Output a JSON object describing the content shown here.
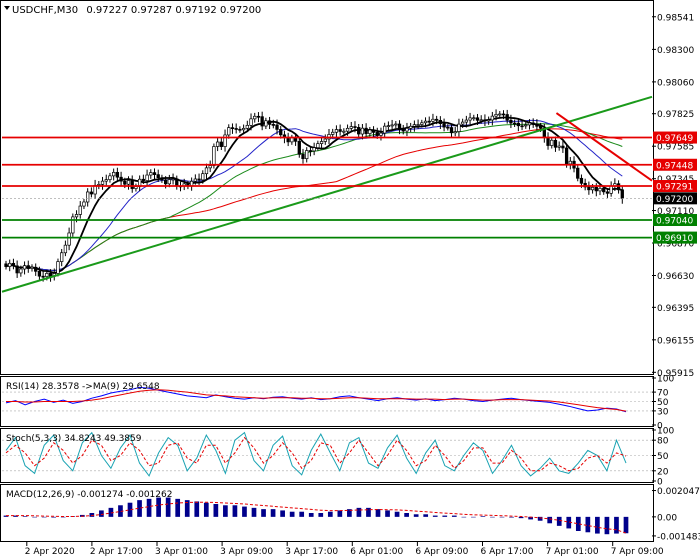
{
  "header": {
    "symbol": "USDCHF,M30",
    "ohlc": "0.97227 0.97287 0.97192 0.97200"
  },
  "chart_data": [
    {
      "type": "candlestick",
      "name": "price",
      "ylim": [
        0.9591,
        0.9865
      ],
      "y_ticks": [
        {
          "label": "0.98541",
          "v": 0.98541
        },
        {
          "label": "0.98300",
          "v": 0.983
        },
        {
          "label": "0.98060",
          "v": 0.9806
        },
        {
          "label": "0.97825",
          "v": 0.97825
        },
        {
          "label": "0.97585",
          "v": 0.97585
        },
        {
          "label": "0.97345",
          "v": 0.97345
        },
        {
          "label": "0.97110",
          "v": 0.9711
        },
        {
          "label": "0.96870",
          "v": 0.9687
        },
        {
          "label": "0.96630",
          "v": 0.9663
        },
        {
          "label": "0.96395",
          "v": 0.96395
        },
        {
          "label": "0.96155",
          "v": 0.96155
        },
        {
          "label": "0.95915",
          "v": 0.95915
        }
      ],
      "levels": [
        {
          "label": "0.97649",
          "value": 0.97649,
          "color": "#e60000"
        },
        {
          "label": "0.97448",
          "value": 0.97448,
          "color": "#e60000"
        },
        {
          "label": "0.97291",
          "value": 0.97291,
          "color": "#e60000"
        },
        {
          "label": "0.97040",
          "value": 0.9704,
          "color": "#008000"
        },
        {
          "label": "0.96910",
          "value": 0.9691,
          "color": "#008000"
        }
      ],
      "current_price": {
        "label": "0.97200",
        "value": 0.972
      },
      "trendlines": [
        {
          "color": "#1a9a1a",
          "from": [
            0,
            0.9651
          ],
          "to": [
            1.05,
            0.9795
          ]
        },
        {
          "color": "#e60000",
          "from": [
            0.853,
            0.9783
          ],
          "to": [
            1.05,
            0.9733
          ]
        }
      ],
      "series": [
        {
          "type": "candles",
          "color": "#000000",
          "close": [
            0.96696,
            0.9672,
            0.96701,
            0.96649,
            0.96678,
            0.96703,
            0.96681,
            0.96691,
            0.96661,
            0.96625,
            0.96622,
            0.96646,
            0.96624,
            0.96645,
            0.96733,
            0.96798,
            0.96854,
            0.96944,
            0.97063,
            0.97081,
            0.97143,
            0.97173,
            0.97247,
            0.97232,
            0.97296,
            0.97303,
            0.97327,
            0.97338,
            0.97366,
            0.97392,
            0.97356,
            0.97327,
            0.97304,
            0.97332,
            0.97272,
            0.97287,
            0.97341,
            0.97331,
            0.97372,
            0.9739,
            0.97375,
            0.97352,
            0.97336,
            0.97307,
            0.97339,
            0.97343,
            0.97292,
            0.97292,
            0.97307,
            0.9729,
            0.97326,
            0.97343,
            0.97336,
            0.97382,
            0.97425,
            0.97442,
            0.97583,
            0.97616,
            0.97582,
            0.97668,
            0.97722,
            0.97716,
            0.9771,
            0.97706,
            0.97717,
            0.97739,
            0.97787,
            0.97806,
            0.97803,
            0.97734,
            0.97773,
            0.97746,
            0.97742,
            0.97709,
            0.97669,
            0.97647,
            0.97617,
            0.97647,
            0.97621,
            0.97525,
            0.97493,
            0.97553,
            0.9755,
            0.97574,
            0.97604,
            0.9762,
            0.97638,
            0.97672,
            0.97688,
            0.97708,
            0.97694,
            0.97696,
            0.97717,
            0.9773,
            0.97724,
            0.97675,
            0.97718,
            0.97678,
            0.97705,
            0.97687,
            0.97664,
            0.97682,
            0.97733,
            0.97737,
            0.97742,
            0.97749,
            0.97708,
            0.97697,
            0.97717,
            0.97732,
            0.97744,
            0.97745,
            0.97758,
            0.9777,
            0.97769,
            0.97784,
            0.97776,
            0.97752,
            0.97726,
            0.97723,
            0.97684,
            0.97693,
            0.97748,
            0.97763,
            0.97778,
            0.97794,
            0.97795,
            0.97776,
            0.9778,
            0.97771,
            0.97779,
            0.97807,
            0.9782,
            0.97823,
            0.97819,
            0.97777,
            0.97756,
            0.97755,
            0.97736,
            0.97735,
            0.97742,
            0.97757,
            0.97745,
            0.97732,
            0.97718,
            0.97651,
            0.9759,
            0.97629,
            0.97577,
            0.97586,
            0.97572,
            0.97454,
            0.97474,
            0.97423,
            0.97348,
            0.97311,
            0.97284,
            0.97263,
            0.97281,
            0.97255,
            0.97274,
            0.97248,
            0.97237,
            0.97291,
            0.97308,
            0.97263,
            0.972
          ]
        }
      ]
    },
    {
      "type": "line",
      "name": "RSI",
      "title": "RSI(14) 28.3578  ->MA(9) 29.6548",
      "ylim": [
        0,
        100
      ],
      "y_ticks": [
        {
          "label": "100",
          "v": 100
        },
        {
          "label": "70",
          "v": 70
        },
        {
          "label": "50",
          "v": 50
        },
        {
          "label": "30",
          "v": 30
        },
        {
          "label": "0",
          "v": 0
        }
      ],
      "series": [
        {
          "name": "RSI(14)",
          "color": "#0000ff",
          "values": [
            47,
            52,
            43,
            50,
            55,
            48,
            53,
            46,
            50,
            57,
            62,
            68,
            72,
            75,
            80,
            78,
            74,
            70,
            66,
            62,
            60,
            58,
            64,
            60,
            57,
            55,
            58,
            56,
            59,
            60,
            57,
            55,
            58,
            54,
            56,
            60,
            62,
            58,
            55,
            52,
            56,
            58,
            55,
            53,
            56,
            52,
            54,
            57,
            55,
            52,
            50,
            53,
            55,
            57,
            54,
            52,
            50,
            48,
            44,
            40,
            35,
            30,
            32,
            36,
            34,
            28
          ]
        },
        {
          "name": "MA(9)",
          "color": "#e60000",
          "values": [
            50,
            50,
            49,
            49,
            50,
            50,
            50,
            50,
            51,
            53,
            56,
            60,
            64,
            68,
            72,
            74,
            75,
            74,
            72,
            70,
            67,
            64,
            63,
            62,
            60,
            59,
            58,
            57,
            58,
            58,
            58,
            57,
            57,
            56,
            56,
            57,
            58,
            58,
            57,
            56,
            56,
            56,
            56,
            55,
            55,
            55,
            54,
            55,
            55,
            54,
            53,
            53,
            54,
            54,
            54,
            53,
            52,
            51,
            49,
            46,
            43,
            40,
            37,
            35,
            33,
            29.6548
          ]
        }
      ]
    },
    {
      "type": "line",
      "name": "Stochastic",
      "title": "Stoch(5,3,3) 34.8243 49.3859",
      "ylim": [
        0,
        100
      ],
      "y_ticks": [
        {
          "label": "100",
          "v": 100
        },
        {
          "label": "80",
          "v": 80
        },
        {
          "label": "50",
          "v": 50
        },
        {
          "label": "20",
          "v": 20
        },
        {
          "label": "0",
          "v": 0
        }
      ],
      "series": [
        {
          "name": "%K",
          "color": "#1aa3b3",
          "values": [
            60,
            85,
            30,
            15,
            70,
            90,
            40,
            20,
            75,
            95,
            50,
            25,
            65,
            90,
            35,
            10,
            55,
            85,
            70,
            20,
            45,
            90,
            60,
            15,
            80,
            95,
            40,
            20,
            70,
            88,
            30,
            12,
            60,
            92,
            55,
            20,
            75,
            85,
            35,
            25,
            65,
            90,
            45,
            15,
            55,
            80,
            30,
            20,
            50,
            75,
            60,
            15,
            40,
            70,
            30,
            10,
            25,
            45,
            20,
            15,
            35,
            60,
            50,
            20,
            80,
            35
          ]
        },
        {
          "name": "%D",
          "color": "#e60000",
          "values": [
            55,
            70,
            55,
            30,
            45,
            75,
            60,
            35,
            50,
            80,
            70,
            40,
            50,
            75,
            60,
            30,
            35,
            70,
            75,
            45,
            35,
            70,
            70,
            35,
            55,
            85,
            65,
            35,
            50,
            75,
            55,
            25,
            40,
            75,
            70,
            35,
            55,
            80,
            55,
            30,
            50,
            80,
            60,
            30,
            40,
            70,
            50,
            25,
            40,
            65,
            65,
            35,
            35,
            60,
            45,
            20,
            20,
            35,
            30,
            20,
            25,
            45,
            50,
            35,
            55,
            49
          ]
        }
      ]
    },
    {
      "type": "bar",
      "name": "MACD",
      "title": "MACD(12,26,9) -0.001274 -0.001262",
      "ylim": [
        -0.0018,
        0.0024
      ],
      "y_ticks": [
        {
          "label": "0.002047",
          "v": 0.002047
        },
        {
          "label": "0.00",
          "v": 0
        },
        {
          "label": "-0.001483",
          "v": -0.001483
        }
      ],
      "series": [
        {
          "name": "MACD",
          "color": "#00008b",
          "values": [
            0.0001,
            0.0001,
            5e-05,
            0,
            0,
            -5e-05,
            0,
            5e-05,
            0.00015,
            0.0003,
            0.0005,
            0.0007,
            0.0009,
            0.0011,
            0.0013,
            0.0014,
            0.0015,
            0.0015,
            0.0014,
            0.0013,
            0.0012,
            0.0011,
            0.001,
            0.0009,
            0.0009,
            0.0008,
            0.0007,
            0.0006,
            0.0006,
            0.0005,
            0.0004,
            0.0004,
            0.0003,
            0.0003,
            0.0004,
            0.0005,
            0.0006,
            0.0007,
            0.0007,
            0.0006,
            0.0005,
            0.0004,
            0.0003,
            0.0002,
            0.0002,
            0.0001,
            0.0001,
            0.0001,
            0,
            0,
            5e-05,
            0,
            0,
            -5e-05,
            -0.0001,
            -0.0002,
            -0.0003,
            -0.0005,
            -0.0007,
            -0.0009,
            -0.0011,
            -0.0012,
            -0.0013,
            -0.00135,
            -0.0013,
            -0.001274
          ]
        },
        {
          "name": "Signal",
          "color": "#e60000",
          "values": [
            0.0001,
            0.0001,
            0.0001,
            8e-05,
            6e-05,
            4e-05,
            3e-05,
            3e-05,
            5e-05,
            0.0001,
            0.00018,
            0.0003,
            0.00042,
            0.00055,
            0.00068,
            0.0008,
            0.00092,
            0.001,
            0.00108,
            0.00112,
            0.00114,
            0.00114,
            0.00112,
            0.00108,
            0.00104,
            0.001,
            0.00094,
            0.00088,
            0.00082,
            0.00076,
            0.0007,
            0.00064,
            0.00058,
            0.00052,
            0.00049,
            0.00049,
            0.0005,
            0.00053,
            0.00056,
            0.00057,
            0.00056,
            0.00054,
            0.0005,
            0.00045,
            0.0004,
            0.00034,
            0.00029,
            0.00025,
            0.0002,
            0.00016,
            0.00014,
            0.00011,
            9e-05,
            6e-05,
            3e-05,
            -2e-05,
            -8e-05,
            -0.00016,
            -0.00027,
            -0.0004,
            -0.00054,
            -0.00068,
            -0.00081,
            -0.00093,
            -0.00101,
            -0.001262
          ]
        }
      ]
    }
  ],
  "x_axis": {
    "labels": [
      {
        "label": "2 Apr 2020",
        "pos": 0.04
      },
      {
        "label": "2 Apr 17:00",
        "pos": 0.145
      },
      {
        "label": "3 Apr 01:00",
        "pos": 0.25
      },
      {
        "label": "3 Apr 09:00",
        "pos": 0.355
      },
      {
        "label": "3 Apr 17:00",
        "pos": 0.46
      },
      {
        "label": "6 Apr 01:00",
        "pos": 0.565
      },
      {
        "label": "6 Apr 09:00",
        "pos": 0.67
      },
      {
        "label": "6 Apr 17:00",
        "pos": 0.775
      },
      {
        "label": "7 Apr 01:00",
        "pos": 0.88
      },
      {
        "label": "7 Apr 09:00",
        "pos": 0.985
      }
    ]
  },
  "colors": {
    "candle": "#000000",
    "ma_fast": "#000000",
    "ma_blue": "#2323c8",
    "ma_green": "#1a8a1a",
    "ma_red": "#e60000",
    "grid": "#d0d0d0",
    "current_price_bg": "#000000"
  }
}
